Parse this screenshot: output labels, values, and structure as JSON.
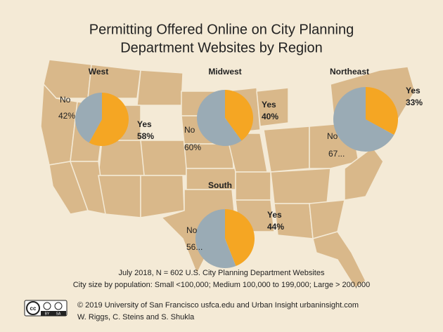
{
  "header": {
    "title_lines": [
      "Permitting Offered Online on City Planning",
      "Department Websites by Region"
    ]
  },
  "chart_data": [
    {
      "type": "pie",
      "title": "West",
      "categories": [
        "Yes",
        "No"
      ],
      "values": [
        58,
        42
      ],
      "value_labels": [
        "58%",
        "42%"
      ],
      "colors": [
        "#f5a623",
        "#9aabb5"
      ]
    },
    {
      "type": "pie",
      "title": "Midwest",
      "categories": [
        "Yes",
        "No"
      ],
      "values": [
        40,
        60
      ],
      "value_labels": [
        "40%",
        "60%"
      ],
      "colors": [
        "#f5a623",
        "#9aabb5"
      ]
    },
    {
      "type": "pie",
      "title": "Northeast",
      "categories": [
        "Yes",
        "No"
      ],
      "values": [
        33,
        67
      ],
      "value_labels": [
        "33%",
        "67..."
      ],
      "colors": [
        "#f5a623",
        "#9aabb5"
      ]
    },
    {
      "type": "pie",
      "title": "South",
      "categories": [
        "Yes",
        "No"
      ],
      "values": [
        44,
        56
      ],
      "value_labels": [
        "44%",
        "56..."
      ],
      "colors": [
        "#f5a623",
        "#9aabb5"
      ]
    }
  ],
  "notes": [
    "July 2018, N = 602 U.S. City Planning Department Websites",
    "City size by population:  Small <100,000; Medium 100,000 to 199,000; Large > 200,000"
  ],
  "license": {
    "cc": "cc",
    "by": "BY",
    "sa": "SA"
  },
  "credits": [
    "© 2019 University of San Francisco usfca.edu and Urban Insight urbaninsight.com",
    "W. Riggs, C. Steins and S. Shukla"
  ]
}
